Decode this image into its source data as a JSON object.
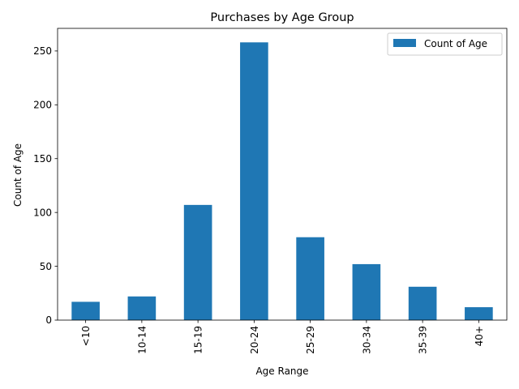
{
  "chart_data": {
    "type": "bar",
    "title": "Purchases by Age Group",
    "xlabel": "Age Range",
    "ylabel": "Count of Age",
    "categories": [
      "<10",
      "10-14",
      "15-19",
      "20-24",
      "25-29",
      "30-34",
      "35-39",
      "40+"
    ],
    "series": [
      {
        "name": "Count of Age",
        "values": [
          17,
          22,
          107,
          258,
          77,
          52,
          31,
          12
        ]
      }
    ],
    "ylim": [
      0,
      271
    ],
    "yticks": [
      0,
      50,
      100,
      150,
      200,
      250
    ],
    "grid": false,
    "legend_position": "top-right",
    "x_tick_rotation": "vertical",
    "bar_color": "#1f77b4"
  }
}
